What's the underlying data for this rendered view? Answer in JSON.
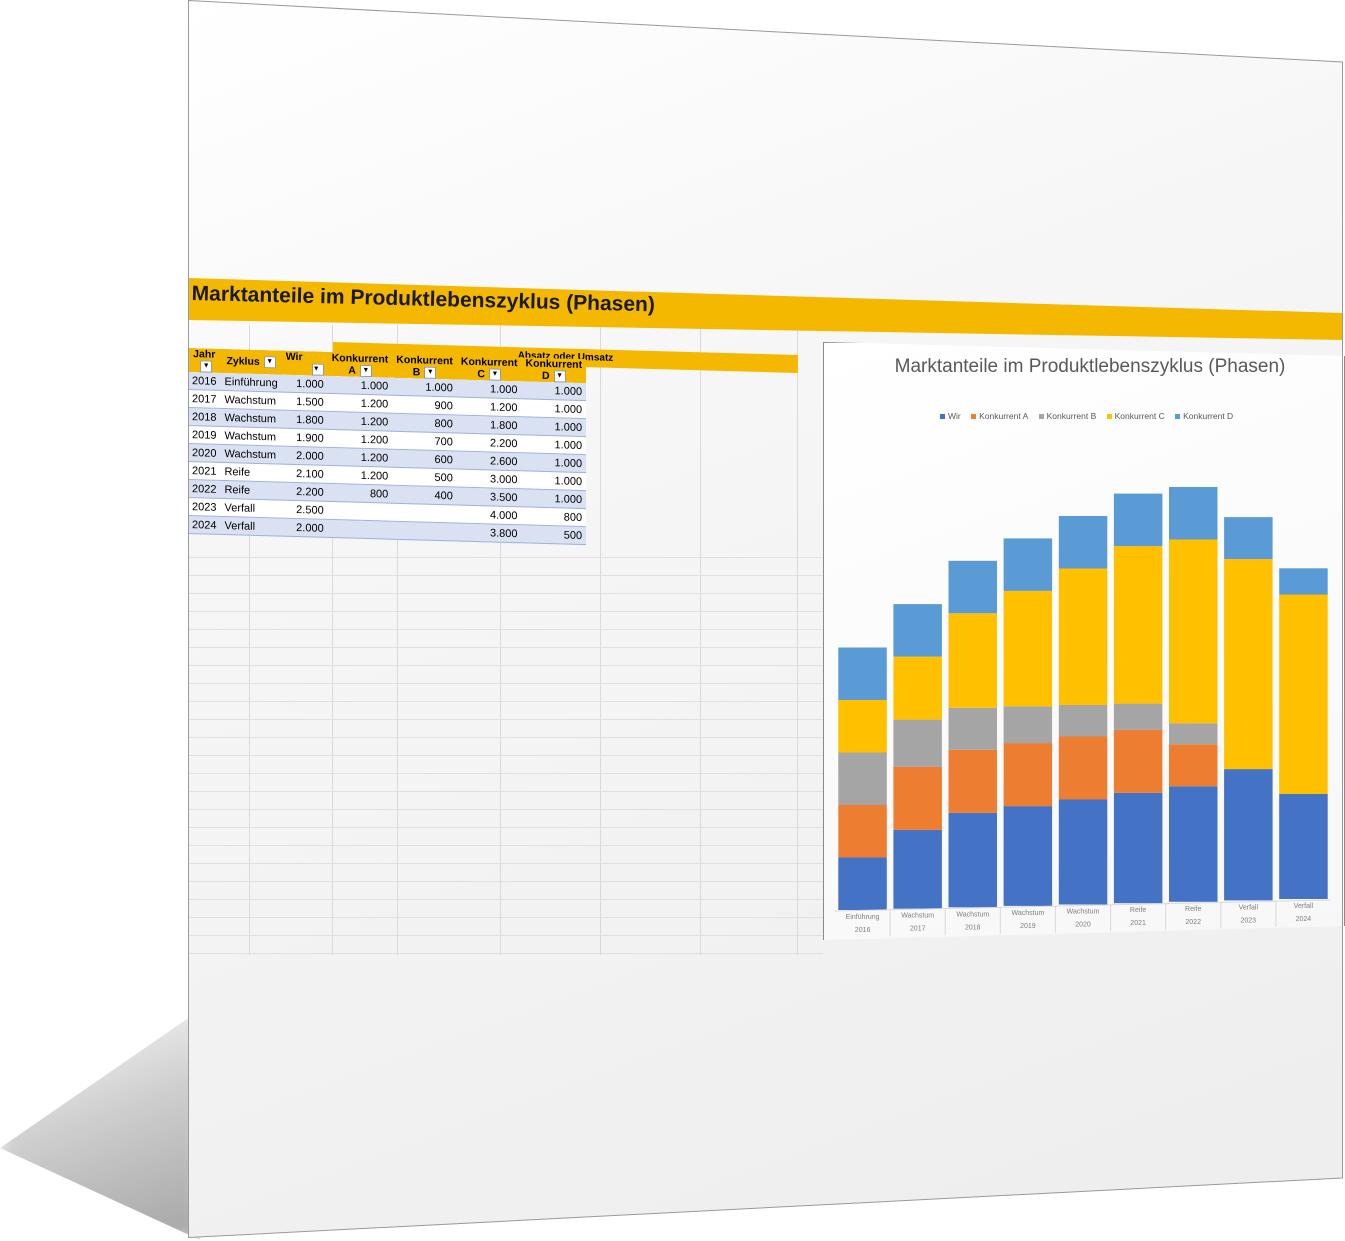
{
  "banner": {
    "title": "Marktanteile im Produktlebenszyklus (Phasen)"
  },
  "table": {
    "group_header": "Absatz oder Umsatz",
    "headers": [
      "Jahr",
      "Zyklus",
      "Wir",
      "Konkurrent A",
      "Konkurrent B",
      "Konkurrent C",
      "Konkurrent D"
    ],
    "rows": [
      [
        "2016",
        "Einführung",
        "1.000",
        "1.000",
        "1.000",
        "1.000",
        "1.000"
      ],
      [
        "2017",
        "Wachstum",
        "1.500",
        "1.200",
        "900",
        "1.200",
        "1.000"
      ],
      [
        "2018",
        "Wachstum",
        "1.800",
        "1.200",
        "800",
        "1.800",
        "1.000"
      ],
      [
        "2019",
        "Wachstum",
        "1.900",
        "1.200",
        "700",
        "2.200",
        "1.000"
      ],
      [
        "2020",
        "Wachstum",
        "2.000",
        "1.200",
        "600",
        "2.600",
        "1.000"
      ],
      [
        "2021",
        "Reife",
        "2.100",
        "1.200",
        "500",
        "3.000",
        "1.000"
      ],
      [
        "2022",
        "Reife",
        "2.200",
        "800",
        "400",
        "3.500",
        "1.000"
      ],
      [
        "2023",
        "Verfall",
        "2.500",
        "",
        "",
        "4.000",
        "800"
      ],
      [
        "2024",
        "Verfall",
        "2.000",
        "",
        "",
        "3.800",
        "500"
      ]
    ]
  },
  "chart_data": {
    "type": "bar",
    "stacked": true,
    "title": "Marktanteile im Produktlebenszyklus (Phasen)",
    "categories": [
      [
        "Einführung",
        "2016"
      ],
      [
        "Wachstum",
        "2017"
      ],
      [
        "Wachstum",
        "2018"
      ],
      [
        "Wachstum",
        "2019"
      ],
      [
        "Wachstum",
        "2020"
      ],
      [
        "Reife",
        "2021"
      ],
      [
        "Reife",
        "2022"
      ],
      [
        "Verfall",
        "2023"
      ],
      [
        "Verfall",
        "2024"
      ]
    ],
    "series": [
      {
        "name": "Wir",
        "color": "#4472c4",
        "values": [
          1000,
          1500,
          1800,
          1900,
          2000,
          2100,
          2200,
          2500,
          2000
        ]
      },
      {
        "name": "Konkurrent A",
        "color": "#ed7d31",
        "values": [
          1000,
          1200,
          1200,
          1200,
          1200,
          1200,
          800,
          0,
          0
        ]
      },
      {
        "name": "Konkurrent B",
        "color": "#a5a5a5",
        "values": [
          1000,
          900,
          800,
          700,
          600,
          500,
          400,
          0,
          0
        ]
      },
      {
        "name": "Konkurrent C",
        "color": "#ffc000",
        "values": [
          1000,
          1200,
          1800,
          2200,
          2600,
          3000,
          3500,
          4000,
          3800
        ]
      },
      {
        "name": "Konkurrent D",
        "color": "#5b9bd5",
        "values": [
          1000,
          1000,
          1000,
          1000,
          1000,
          1000,
          1000,
          800,
          500
        ]
      }
    ],
    "legend_position": "top",
    "grid": false
  }
}
